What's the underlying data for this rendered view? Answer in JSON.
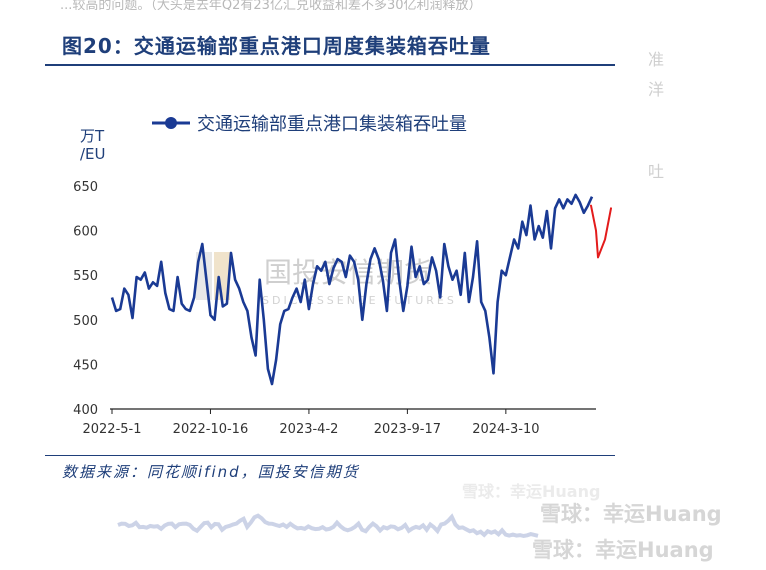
{
  "top_cut_text": "...较高的问题。（大头是去年Q2有23亿汇兑收益和差不多30亿利润释放）",
  "figure_title": "图20：交通运输部重点港口周度集装箱吞吐量",
  "source_text": "数据来源：同花顺ifind，国投安信期货",
  "side_chars": [
    "准",
    "洋",
    "吐"
  ],
  "watermark_mid": "国投安信期货",
  "watermark_mid_en": "SDIC ESSENCE FUTURES",
  "watermarks": [
    "雪球：幸运Huang",
    "雪球：幸运Huang",
    "雪球：幸运Huang"
  ],
  "colors": {
    "series": "#1a3a94",
    "title": "#1f3f7a",
    "annotation": "#e31b1b"
  },
  "chart_data": {
    "type": "line",
    "title": "",
    "unit_label": "万T/EU",
    "legend": {
      "entries": [
        "交通运输部重点港口集装箱吞吐量"
      ],
      "placement": "top"
    },
    "ylim": [
      400,
      650
    ],
    "yticks": [
      400,
      450,
      500,
      550,
      600,
      650
    ],
    "xtick_labels": [
      "2022-5-1",
      "2022-10-16",
      "2023-4-2",
      "2023-9-17",
      "2024-3-10"
    ],
    "x_index_range": [
      0,
      117
    ],
    "xtick_index": [
      0,
      24,
      48,
      72,
      96
    ],
    "series": [
      {
        "name": "交通运输部重点港口集装箱吞吐量",
        "values": [
          525,
          510,
          512,
          535,
          528,
          502,
          548,
          545,
          553,
          535,
          542,
          538,
          565,
          530,
          512,
          510,
          548,
          518,
          512,
          510,
          525,
          565,
          585,
          545,
          505,
          500,
          548,
          515,
          518,
          575,
          545,
          535,
          520,
          510,
          480,
          460,
          545,
          500,
          445,
          428,
          455,
          495,
          510,
          512,
          525,
          535,
          520,
          545,
          512,
          540,
          560,
          555,
          565,
          540,
          558,
          568,
          565,
          548,
          572,
          565,
          545,
          500,
          540,
          568,
          580,
          568,
          545,
          510,
          575,
          590,
          545,
          510,
          538,
          582,
          548,
          560,
          540,
          545,
          570,
          555,
          525,
          585,
          560,
          545,
          555,
          528,
          575,
          520,
          548,
          588,
          520,
          510,
          480,
          440,
          520,
          555,
          550,
          570,
          590,
          580,
          610,
          595,
          628,
          590,
          605,
          592,
          622,
          580,
          625,
          635,
          625,
          635,
          630,
          640,
          632,
          620,
          628,
          638
        ]
      }
    ],
    "annotation": {
      "type": "hand-drawn-line",
      "color": "#e31b1b",
      "values": [
        628,
        600,
        570,
        590,
        625
      ]
    }
  }
}
